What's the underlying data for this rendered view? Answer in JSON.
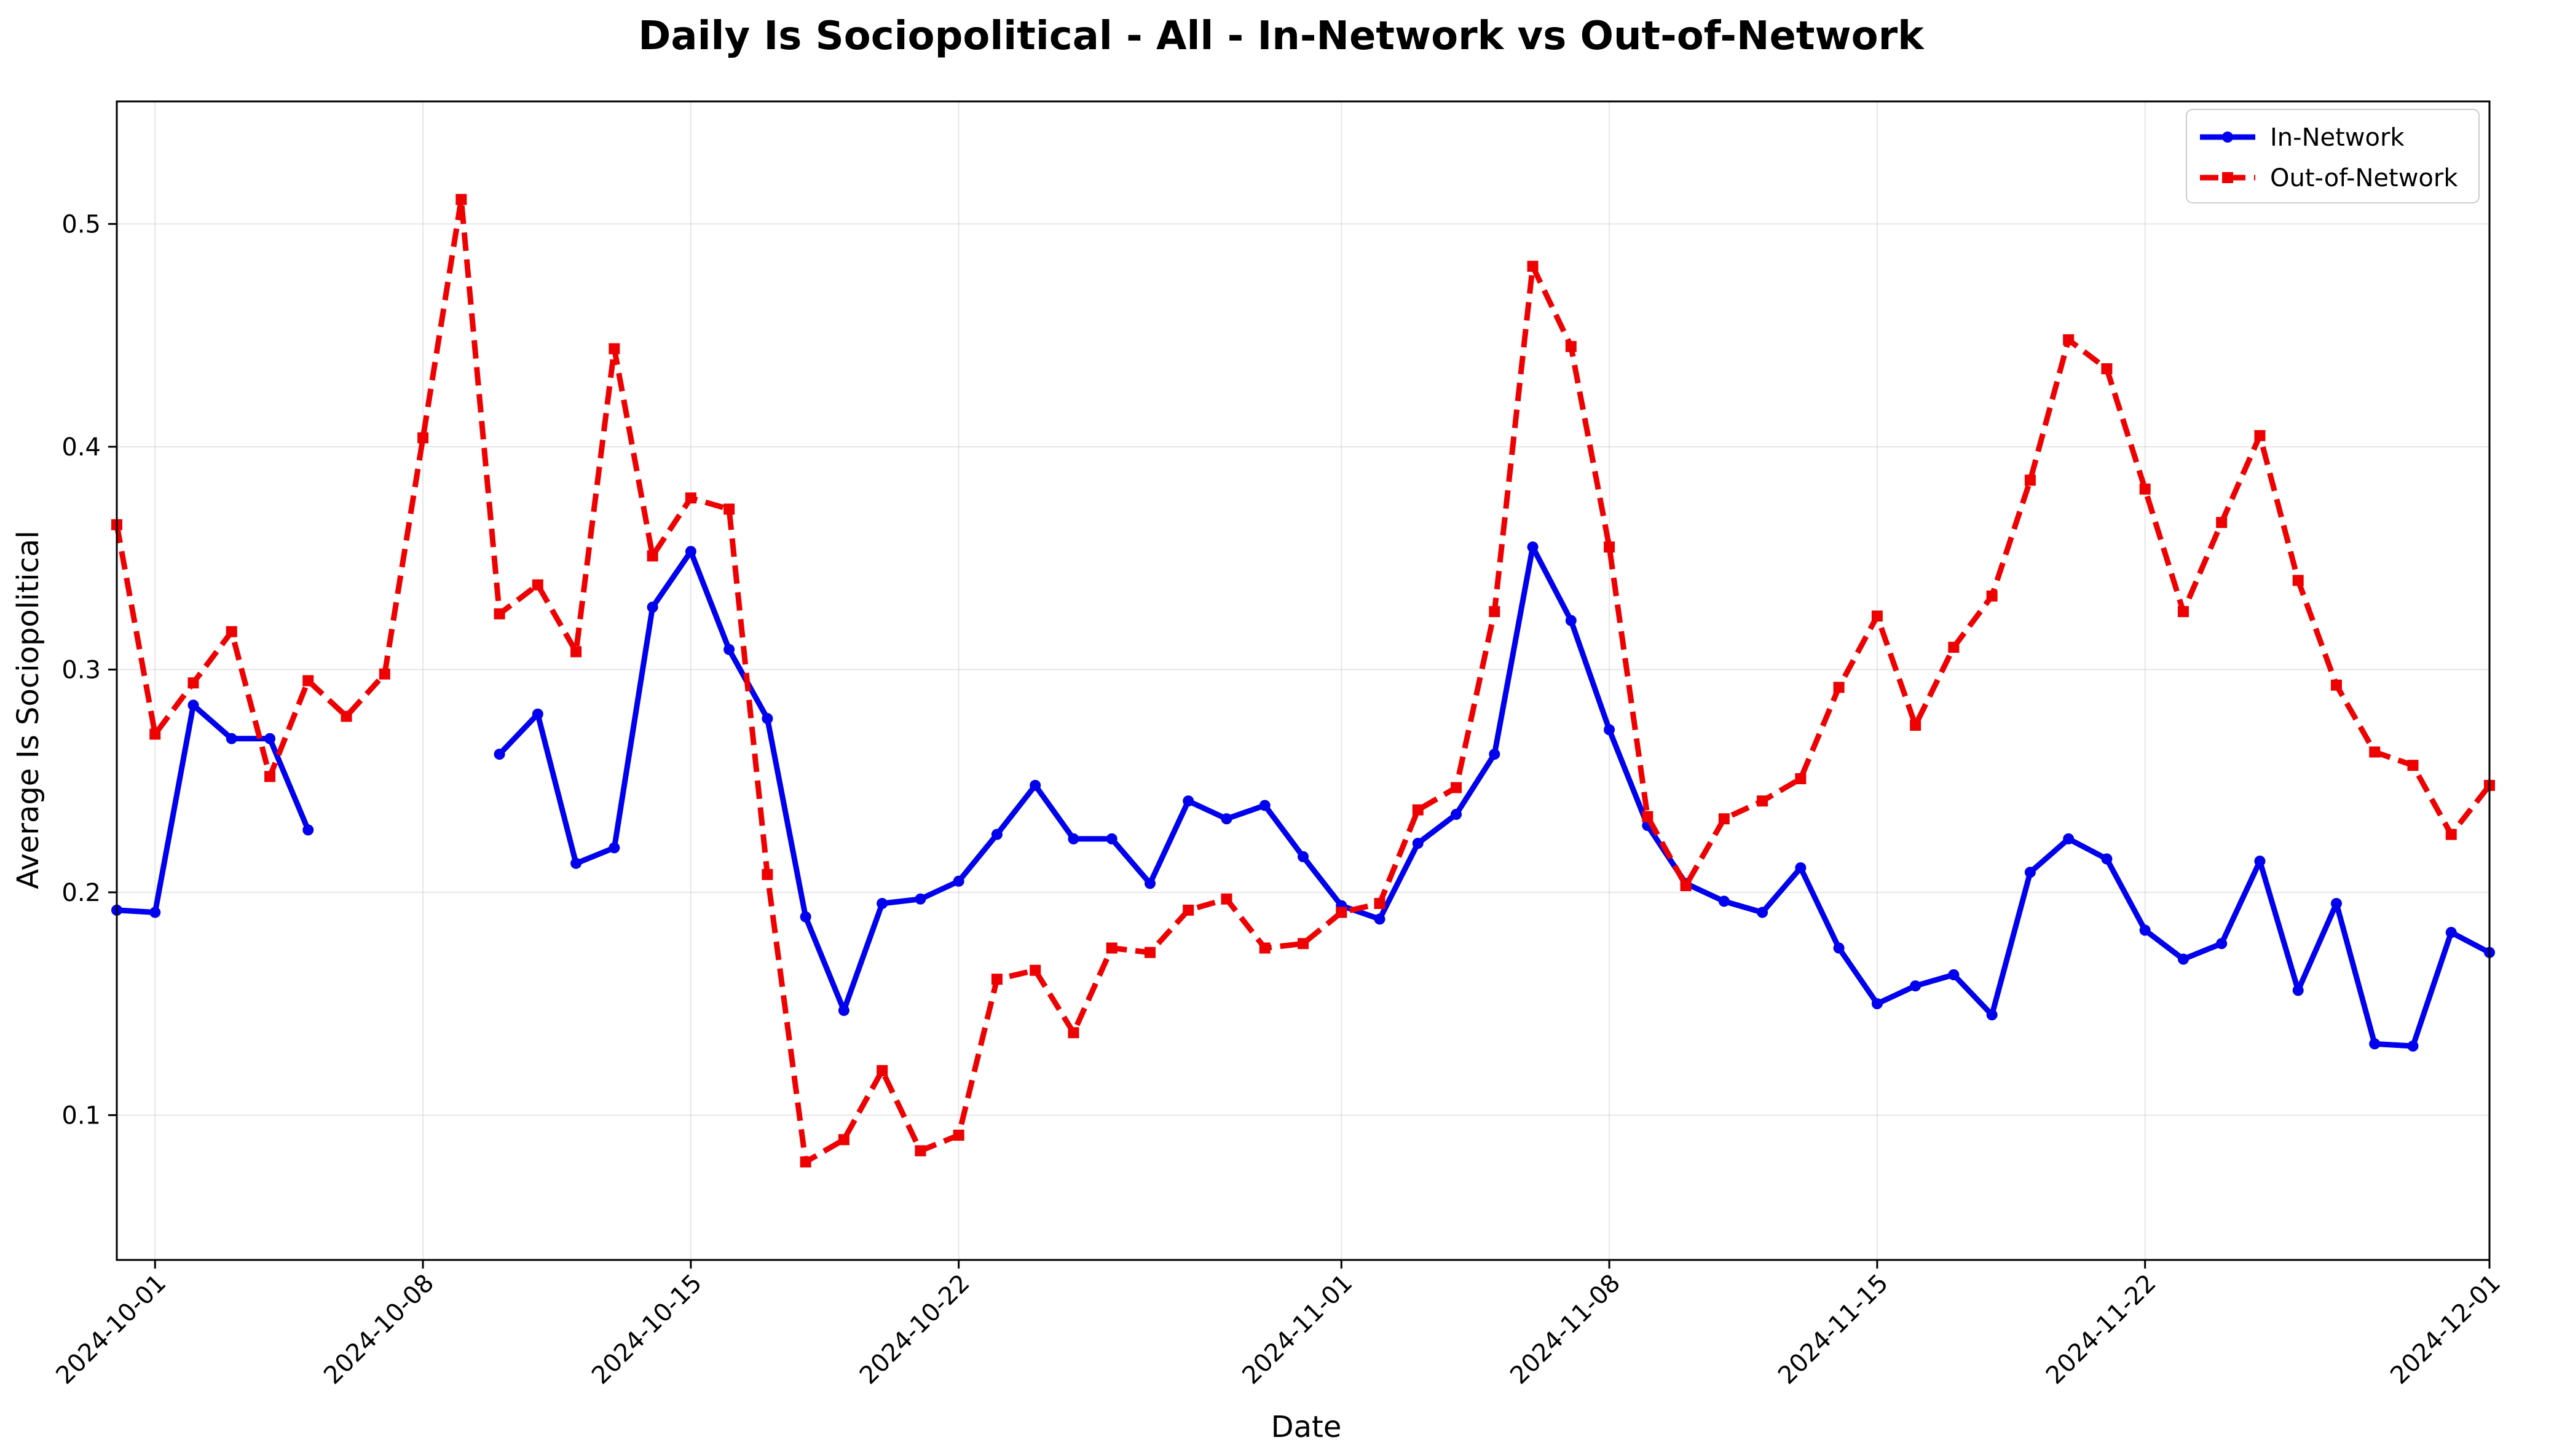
{
  "chart_data": {
    "type": "line",
    "title": "Daily Is Sociopolitical - All - In-Network vs Out-of-Network",
    "xlabel": "Date",
    "ylabel": "Average Is Sociopolitical",
    "x_start": "2024-09-30",
    "xlim": [
      "2024-09-30",
      "2024-12-01"
    ],
    "ylim": [
      0.035,
      0.555
    ],
    "yticks": [
      0.1,
      0.2,
      0.3,
      0.4,
      0.5
    ],
    "ytick_labels": [
      "0.1",
      "0.2",
      "0.3",
      "0.4",
      "0.5"
    ],
    "xticks": [
      "2024-10-01",
      "2024-10-08",
      "2024-10-15",
      "2024-10-22",
      "2024-11-01",
      "2024-11-08",
      "2024-11-15",
      "2024-11-22",
      "2024-12-01"
    ],
    "grid": true,
    "legend": "top-right",
    "series": [
      {
        "name": "In-Network",
        "color": "#0000ee",
        "style": "solid",
        "marker": "circle",
        "values": [
          0.192,
          0.191,
          0.284,
          0.269,
          0.269,
          0.228,
          null,
          null,
          null,
          null,
          0.262,
          0.28,
          0.213,
          0.22,
          0.328,
          0.353,
          0.309,
          0.278,
          0.189,
          0.147,
          0.195,
          0.197,
          0.205,
          0.226,
          0.248,
          0.224,
          0.224,
          0.204,
          0.241,
          0.233,
          0.239,
          0.216,
          0.194,
          0.188,
          0.222,
          0.235,
          0.262,
          0.355,
          0.322,
          0.273,
          0.23,
          0.204,
          0.196,
          0.191,
          0.211,
          0.175,
          0.15,
          0.158,
          0.163,
          0.145,
          0.209,
          0.224,
          0.215,
          0.183,
          0.17,
          0.177,
          0.214,
          0.156,
          0.195,
          0.132,
          0.131,
          0.182,
          0.173
        ]
      },
      {
        "name": "Out-of-Network",
        "color": "#ee0000",
        "style": "dashed",
        "marker": "square",
        "values": [
          0.365,
          0.271,
          0.294,
          0.317,
          0.252,
          0.295,
          0.279,
          0.298,
          0.404,
          0.511,
          0.325,
          0.338,
          0.308,
          0.444,
          0.351,
          0.377,
          0.372,
          0.208,
          0.079,
          0.089,
          0.12,
          0.084,
          0.091,
          0.161,
          0.165,
          0.137,
          0.175,
          0.173,
          0.192,
          0.197,
          0.175,
          0.177,
          0.191,
          0.195,
          0.237,
          0.247,
          0.326,
          0.481,
          0.445,
          0.355,
          0.234,
          0.203,
          0.233,
          0.241,
          0.251,
          0.292,
          0.324,
          0.275,
          0.31,
          0.333,
          0.385,
          0.448,
          0.435,
          0.381,
          0.326,
          0.366,
          0.405,
          0.34,
          0.293,
          0.263,
          0.257,
          0.226,
          0.248
        ]
      }
    ]
  }
}
